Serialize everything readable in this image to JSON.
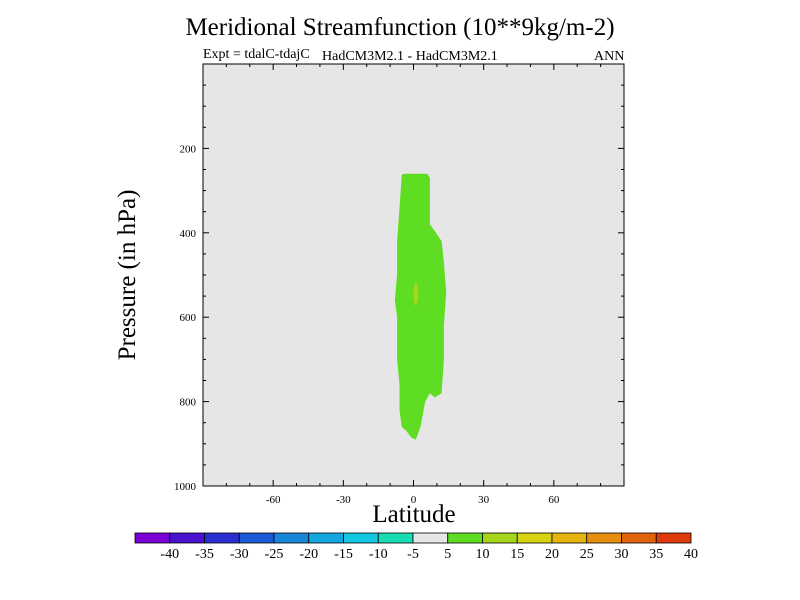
{
  "title": "Meridional Streamfunction (10**9kg/m-2)",
  "subtitle_left": "Expt = tdalC-tdajC",
  "subtitle_center": "HadCM3M2.1 - HadCM3M2.1",
  "subtitle_right": "ANN",
  "chart_data": {
    "type": "contour",
    "title": "Meridional Streamfunction (10**9kg/m-2)",
    "xlabel": "Latitude",
    "ylabel": "Pressure (in hPa)",
    "xlim": [
      -90,
      90
    ],
    "ylim": [
      1000,
      0
    ],
    "xticks": [
      -60,
      -30,
      0,
      30,
      60
    ],
    "yticks": [
      200,
      400,
      600,
      800,
      1000
    ],
    "background_color": "#e6e6e6",
    "regions": [
      {
        "level": "5 to 10",
        "color": "#5fdd22",
        "outline": [
          [
            -5,
            262
          ],
          [
            -4,
            260
          ],
          [
            6,
            260
          ],
          [
            7,
            270
          ],
          [
            7,
            380
          ],
          [
            9,
            395
          ],
          [
            12,
            420
          ],
          [
            13,
            470
          ],
          [
            14,
            540
          ],
          [
            13,
            620
          ],
          [
            13,
            700
          ],
          [
            12,
            780
          ],
          [
            9,
            790
          ],
          [
            7,
            780
          ],
          [
            5,
            800
          ],
          [
            3,
            860
          ],
          [
            1,
            890
          ],
          [
            -1,
            885
          ],
          [
            -3,
            870
          ],
          [
            -5,
            860
          ],
          [
            -6,
            820
          ],
          [
            -6,
            760
          ],
          [
            -7,
            700
          ],
          [
            -7,
            600
          ],
          [
            -8,
            560
          ],
          [
            -7,
            500
          ],
          [
            -7,
            420
          ],
          [
            -6,
            340
          ]
        ]
      },
      {
        "level": "10 to 15",
        "color": "#a5d61b",
        "outline": [
          [
            1,
            515
          ],
          [
            2,
            530
          ],
          [
            2,
            560
          ],
          [
            1,
            575
          ],
          [
            0,
            560
          ],
          [
            0,
            530
          ]
        ]
      }
    ],
    "colorbar": {
      "labels": [
        "-40",
        "-35",
        "-30",
        "-25",
        "-20",
        "-15",
        "-10",
        "-5",
        "5",
        "10",
        "15",
        "20",
        "25",
        "30",
        "35",
        "40"
      ],
      "colors": [
        "#7a00d6",
        "#4a12cf",
        "#2a2ed0",
        "#1a5ad6",
        "#1a86da",
        "#14a7df",
        "#14c7e1",
        "#17dcb2",
        "#e6e6e6",
        "#5fdd22",
        "#a5d61b",
        "#d6d312",
        "#e6b40f",
        "#e68f0e",
        "#e0640c",
        "#de3a0c"
      ]
    }
  }
}
